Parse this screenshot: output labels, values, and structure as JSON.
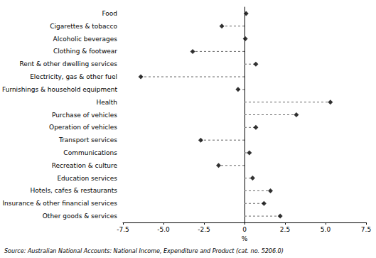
{
  "chart_data": {
    "type": "scatter",
    "orientation": "horizontal",
    "categories": [
      "Food",
      "Cigarettes & tobacco",
      "Alcoholic beverages",
      "Clothing & footwear",
      "Rent & other dwelling services",
      "Electricity, gas & other fuel",
      "Furnishings & household equipment",
      "Health",
      "Purchase of vehicles",
      "Operation of vehicles",
      "Transport services",
      "Communications",
      "Recreation & culture",
      "Education services",
      "Hotels, cafes & restaurants",
      "Insurance & other financial services",
      "Other goods & services"
    ],
    "values": [
      0.1,
      -1.4,
      0.05,
      -3.2,
      0.7,
      -6.4,
      -0.4,
      5.3,
      3.2,
      0.7,
      -2.7,
      0.3,
      -1.6,
      0.5,
      1.6,
      1.2,
      2.2
    ],
    "color": "#000000",
    "marker": "diamond",
    "line_style": "dashed",
    "x_label": "%",
    "xlim": [
      -7.5,
      7.5
    ],
    "xticks": [
      {
        "value": -7.5,
        "label": "-7.5"
      },
      {
        "value": -5,
        "label": "-5.0"
      },
      {
        "value": -2.5,
        "label": "-2.5"
      },
      0,
      2.5,
      {
        "value": 5,
        "label": "5.0"
      },
      7.5
    ],
    "grid": false,
    "source": "Source: Australian National Accounts: National Income, Expenditure and Product (cat. no. 5206.0)"
  }
}
